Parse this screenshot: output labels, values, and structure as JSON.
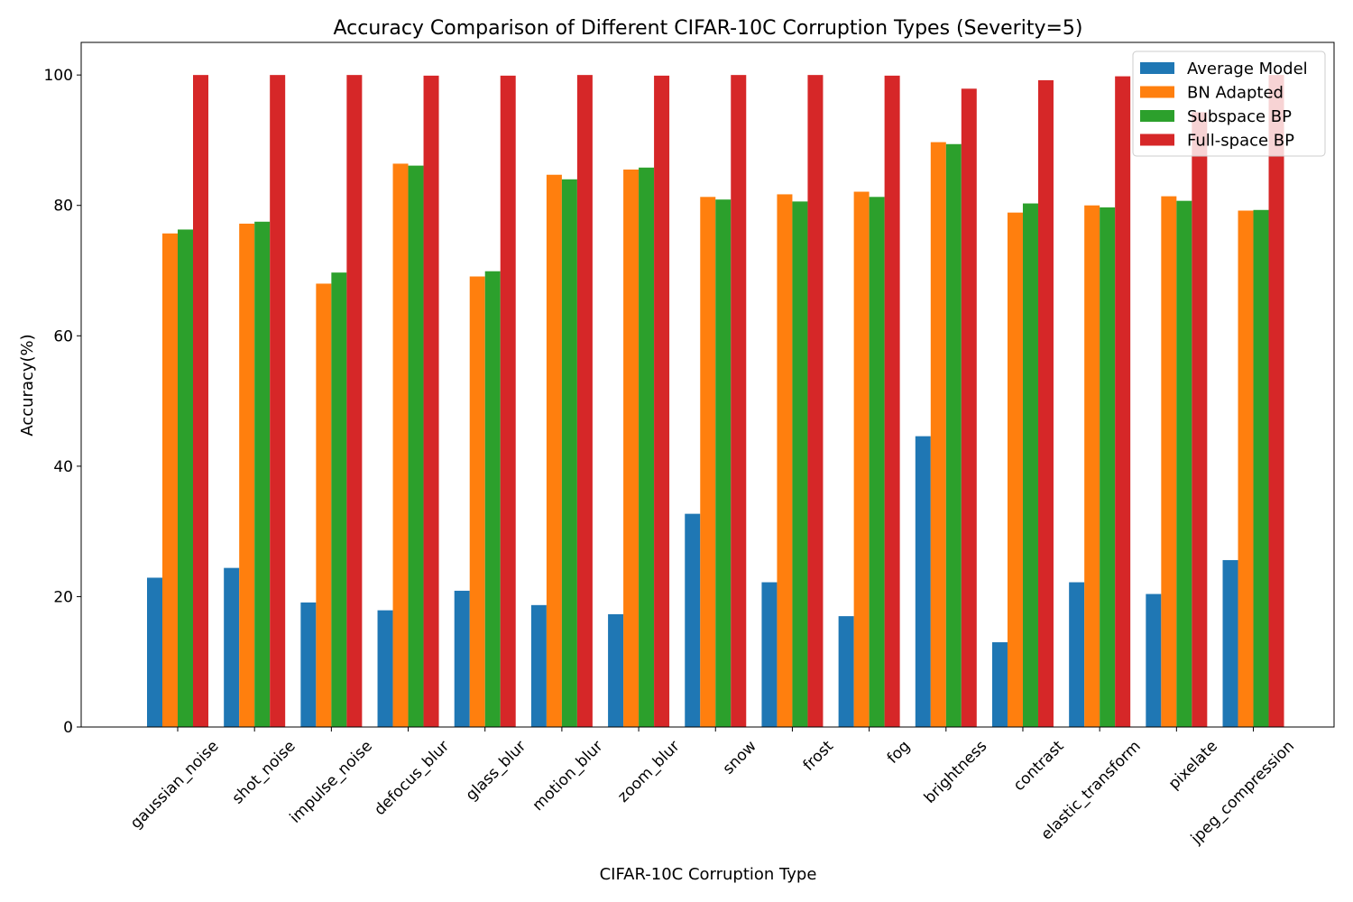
{
  "chart_data": {
    "type": "bar",
    "title": "Accuracy Comparison of Different CIFAR-10C Corruption Types (Severity=5)",
    "xlabel": "CIFAR-10C Corruption Type",
    "ylabel": "Accuracy(%)",
    "ylim": [
      0,
      105
    ],
    "yticks": [
      0,
      20,
      40,
      60,
      80,
      100
    ],
    "grid": false,
    "legend_position": "top-right",
    "categories": [
      "gaussian_noise",
      "shot_noise",
      "impulse_noise",
      "defocus_blur",
      "glass_blur",
      "motion_blur",
      "zoom_blur",
      "snow",
      "frost",
      "fog",
      "brightness",
      "contrast",
      "elastic_transform",
      "pixelate",
      "jpeg_compression"
    ],
    "series": [
      {
        "name": "Average Model",
        "color": "#1f77b4",
        "values": [
          22.9,
          24.4,
          19.1,
          17.9,
          20.9,
          18.7,
          17.3,
          32.7,
          22.2,
          17.0,
          44.6,
          13.0,
          22.2,
          20.4,
          25.6
        ]
      },
      {
        "name": "BN Adapted",
        "color": "#ff7f0e",
        "values": [
          75.7,
          77.2,
          68.0,
          86.4,
          69.1,
          84.7,
          85.5,
          81.3,
          81.7,
          82.1,
          89.7,
          78.9,
          80.0,
          81.4,
          79.2
        ]
      },
      {
        "name": "Subspace BP",
        "color": "#2ca02c",
        "values": [
          76.3,
          77.5,
          69.7,
          86.1,
          69.9,
          84.0,
          85.8,
          80.9,
          80.6,
          81.3,
          89.4,
          80.3,
          79.7,
          80.7,
          79.3
        ]
      },
      {
        "name": "Full-space BP",
        "color": "#d62728",
        "values": [
          100.0,
          100.0,
          100.0,
          99.9,
          99.9,
          100.0,
          99.9,
          100.0,
          100.0,
          99.9,
          97.9,
          99.2,
          99.8,
          94.3,
          100.0
        ]
      }
    ]
  }
}
